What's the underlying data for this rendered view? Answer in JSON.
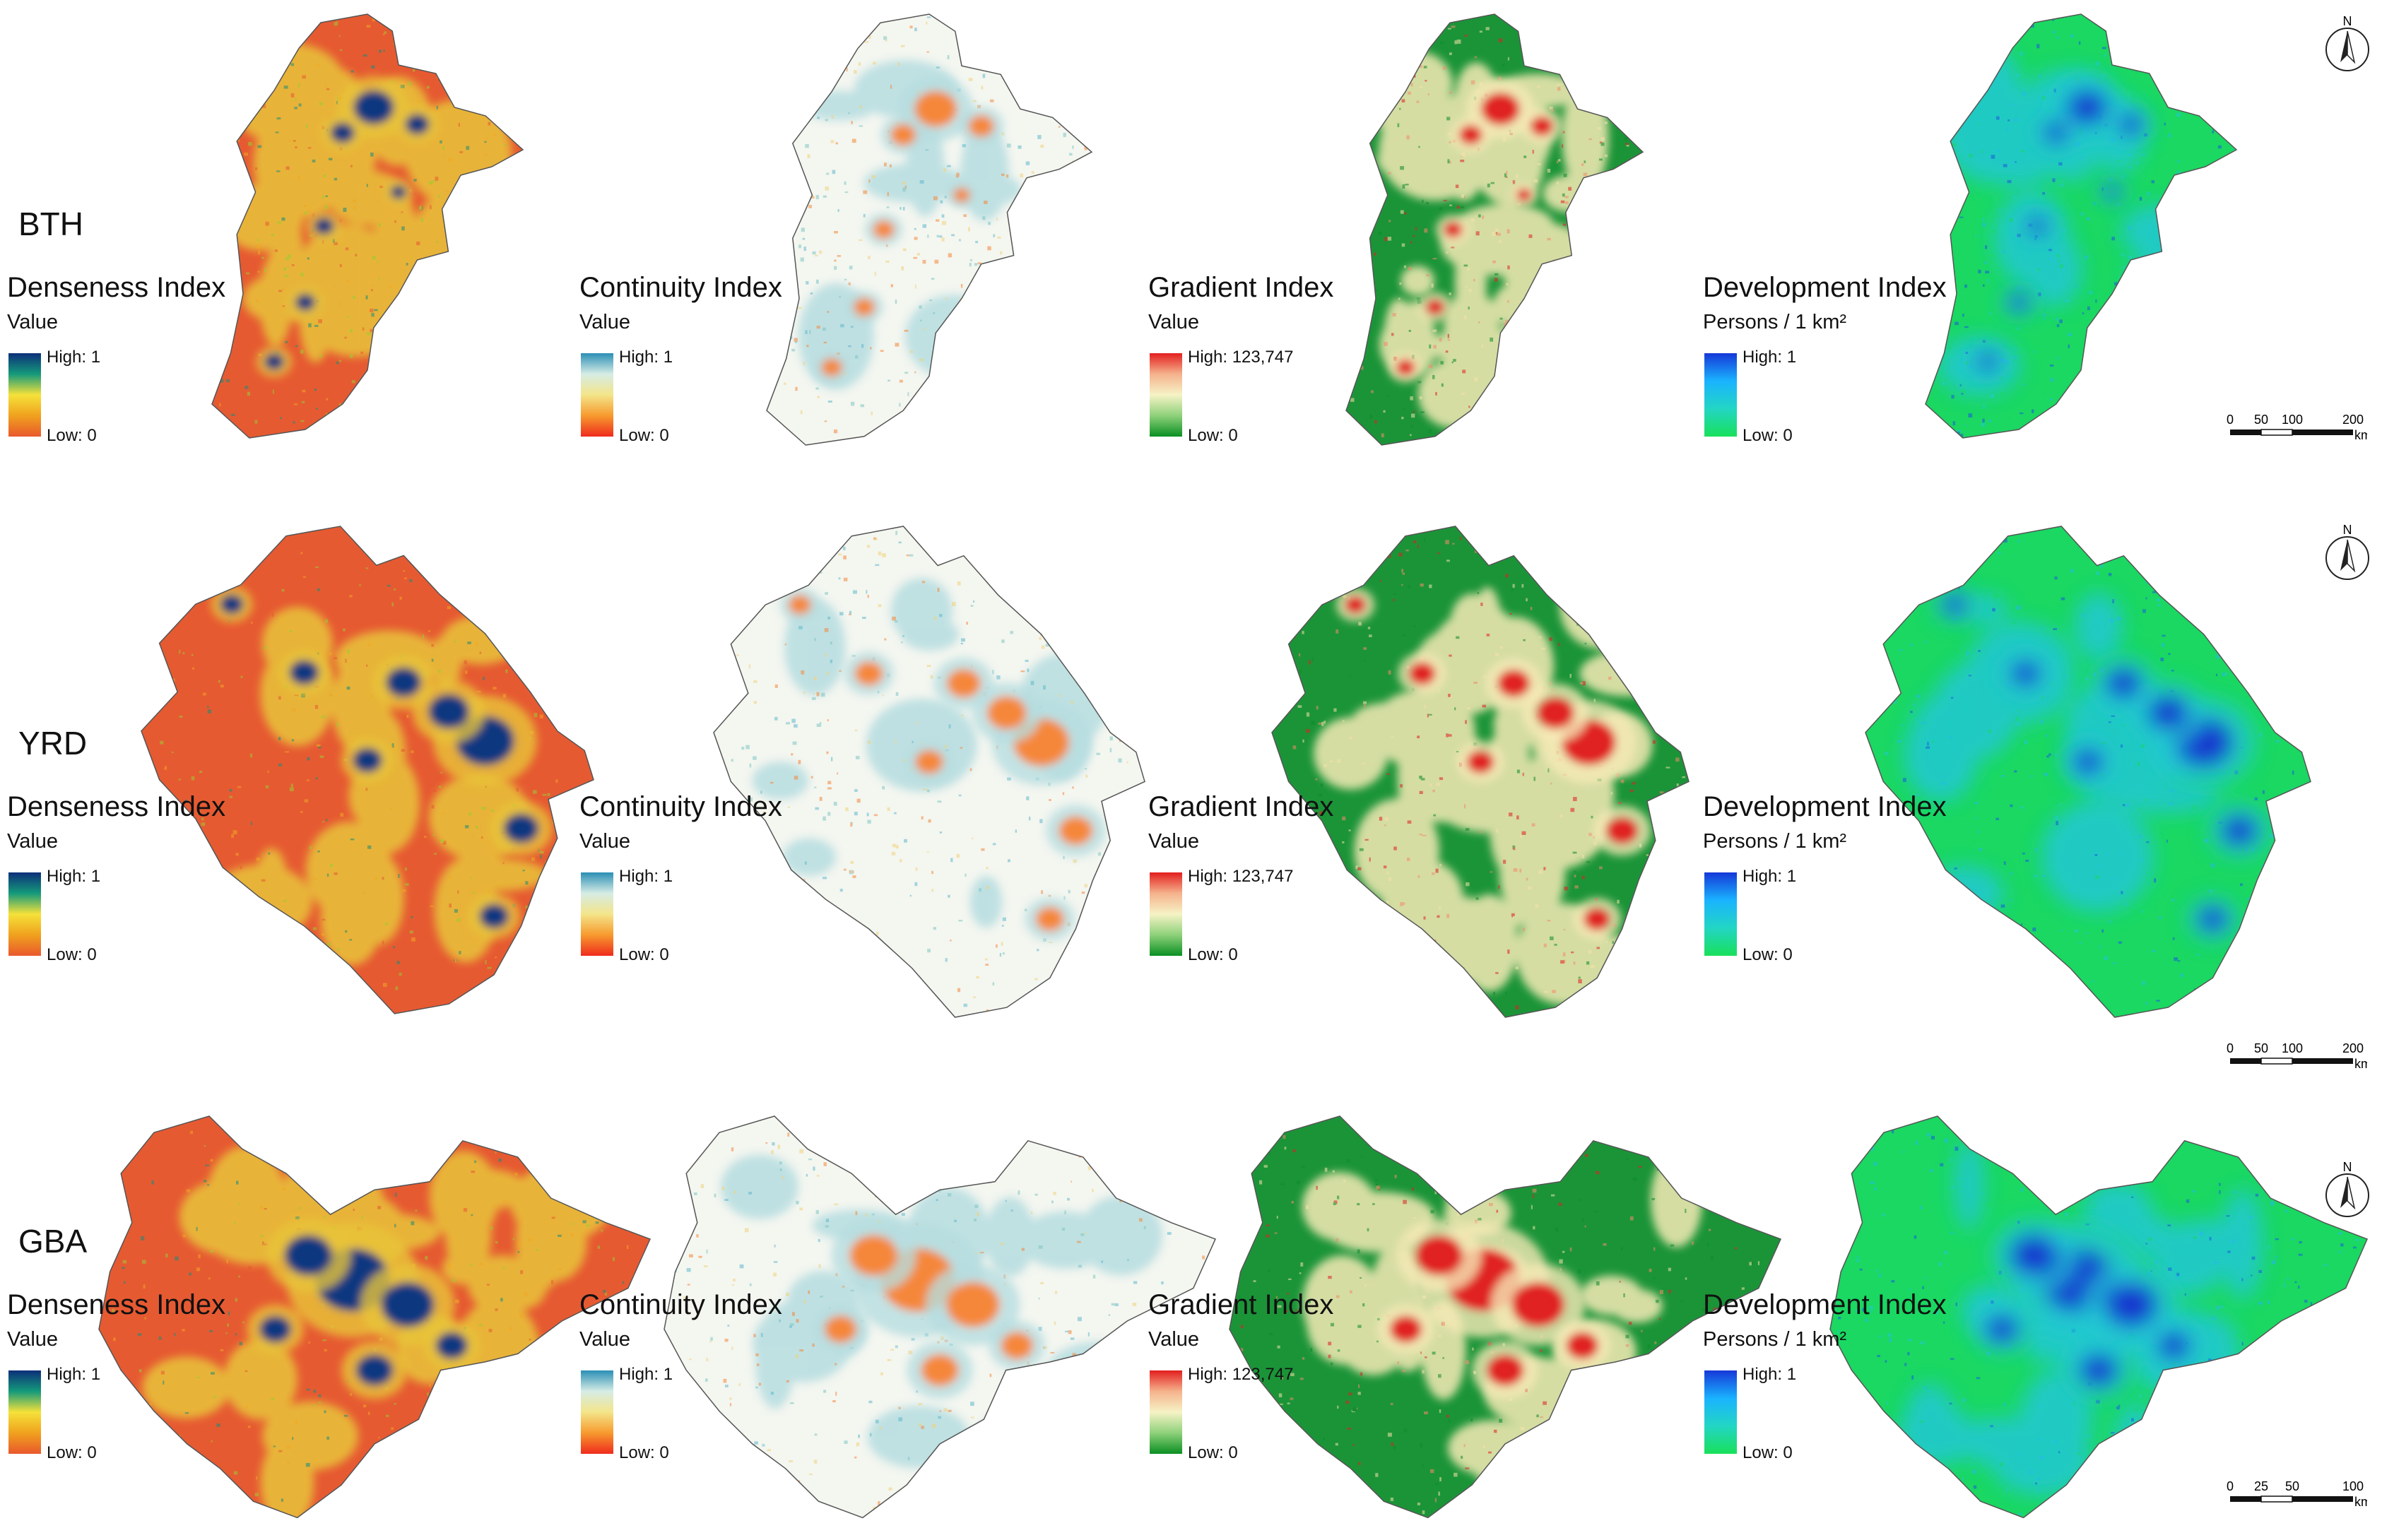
{
  "rows": [
    {
      "region": "BTH",
      "panels": [
        {
          "title": "Denseness Index",
          "unit": "Value",
          "high": "High: 1",
          "low": "Low: 0"
        },
        {
          "title": "Continuity Index",
          "unit": "Value",
          "high": "High: 1",
          "low": "Low: 0"
        },
        {
          "title": "Gradient Index",
          "unit": "Value",
          "high": "High: 123,747",
          "low": "Low: 0"
        },
        {
          "title": "Development Index",
          "unit": "Persons / 1 km²",
          "high": "High: 1",
          "low": "Low: 0"
        }
      ],
      "scale": {
        "ticks": [
          "0",
          "50",
          "100",
          "200"
        ],
        "unit": "km"
      }
    },
    {
      "region": "YRD",
      "panels": [
        {
          "title": "Denseness Index",
          "unit": "Value",
          "high": "High: 1",
          "low": "Low: 0"
        },
        {
          "title": "Continuity Index",
          "unit": "Value",
          "high": "High: 1",
          "low": "Low: 0"
        },
        {
          "title": "Gradient Index",
          "unit": "Value",
          "high": "High: 123,747",
          "low": "Low: 0"
        },
        {
          "title": "Development Index",
          "unit": "Persons / 1 km²",
          "high": "High: 1",
          "low": "Low: 0"
        }
      ],
      "scale": {
        "ticks": [
          "0",
          "50",
          "100",
          "200"
        ],
        "unit": "km"
      }
    },
    {
      "region": "GBA",
      "panels": [
        {
          "title": "Denseness Index",
          "unit": "Value",
          "high": "High: 1",
          "low": "Low: 0"
        },
        {
          "title": "Continuity Index",
          "unit": "Value",
          "high": "High: 1",
          "low": "Low: 0"
        },
        {
          "title": "Gradient Index",
          "unit": "Value",
          "high": "High: 123,747",
          "low": "Low: 0"
        },
        {
          "title": "Development Index",
          "unit": "Persons / 1 km²",
          "high": "High: 1",
          "low": "Low: 0"
        }
      ],
      "scale": {
        "ticks": [
          "0",
          "25",
          "50",
          "100"
        ],
        "unit": "km"
      }
    }
  ],
  "north_label": "N",
  "colors": {
    "denseness_ramp": [
      "#0d2f7a",
      "#149a7a",
      "#f5e23a",
      "#f0a11e",
      "#e9582c"
    ],
    "continuity_ramp": [
      "#2a8fb5",
      "#d6ece5",
      "#f3e58a",
      "#f79a2e",
      "#ef2b1d"
    ],
    "gradient_ramp": [
      "#e21e1e",
      "#f5b28c",
      "#f6f3c6",
      "#8ed17a",
      "#0a8f22"
    ],
    "development_ramp": [
      "#1638d8",
      "#1ab3ff",
      "#22d6c4",
      "#19e05a"
    ]
  }
}
